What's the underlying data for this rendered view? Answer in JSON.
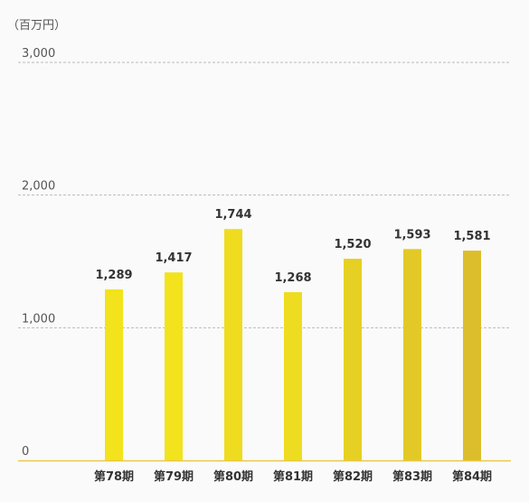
{
  "chart_data": {
    "type": "bar",
    "unit_label": "（百万円）",
    "categories": [
      "第78期",
      "第79期",
      "第80期",
      "第81期",
      "第82期",
      "第83期",
      "第84期"
    ],
    "values": [
      1289,
      1417,
      1744,
      1268,
      1520,
      1593,
      1581
    ],
    "value_labels": [
      "1,289",
      "1,417",
      "1,744",
      "1,268",
      "1,520",
      "1,593",
      "1,581"
    ],
    "ylim": [
      0,
      3000
    ],
    "yticks": [
      0,
      1000,
      2000,
      3000
    ],
    "ytick_labels": [
      "0",
      "1,000",
      "2,000",
      "3,000"
    ],
    "grid": true,
    "bar_colors": [
      "#f2e31c",
      "#f2e31c",
      "#efdc1f",
      "#eedc20",
      "#e6d024",
      "#e2c927",
      "#dcbd2c"
    ],
    "axis_color": "#e8c94a",
    "grid_color": "#bbbbbb"
  }
}
